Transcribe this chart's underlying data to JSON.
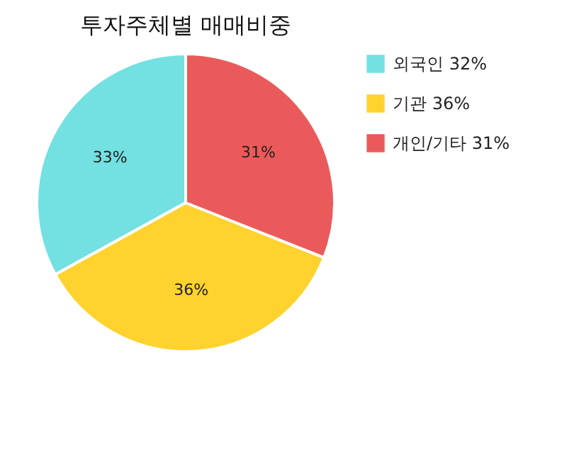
{
  "chart_data": {
    "type": "pie",
    "title": "투자주체별 매매비중",
    "categories": [
      "외국인 32%",
      "기관 36%",
      "개인/기타 31%"
    ],
    "values": [
      33,
      36,
      31
    ],
    "value_labels": [
      "33%",
      "36%",
      "31%"
    ],
    "colors": [
      "#73e0e1",
      "#ffd22e",
      "#eb5a5a"
    ],
    "legend": "top right"
  }
}
